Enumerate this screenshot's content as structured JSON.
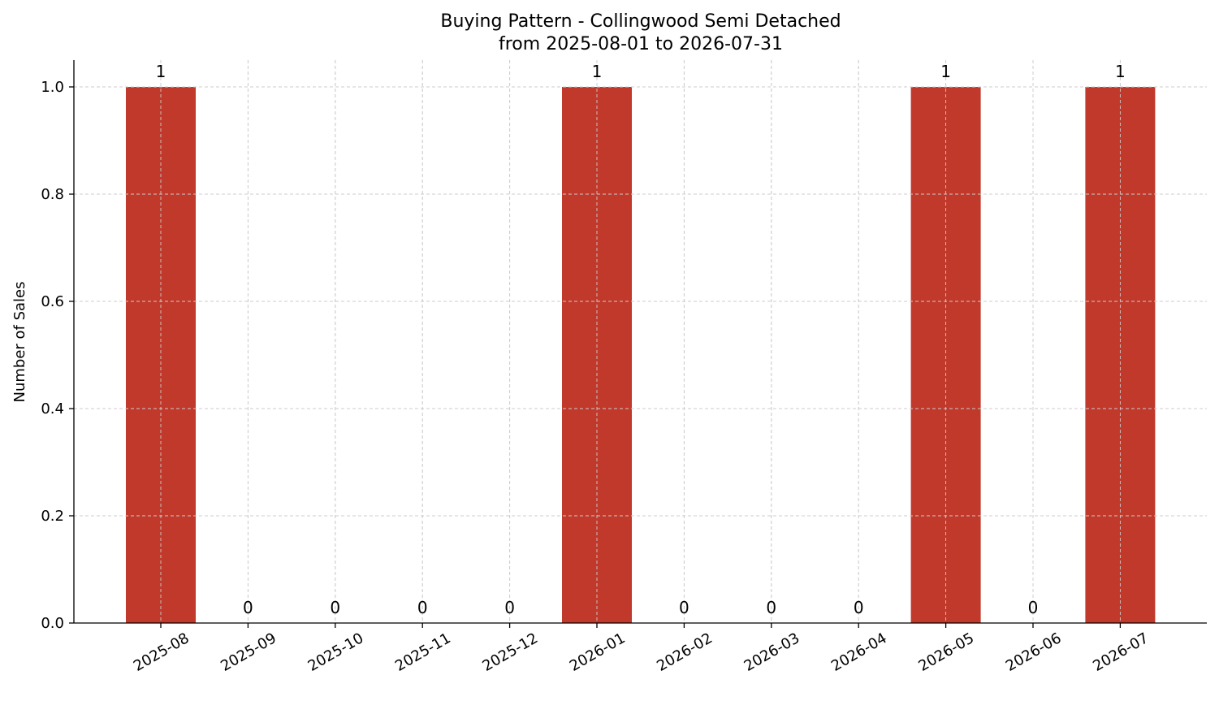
{
  "chart_data": {
    "type": "bar",
    "title": "Buying Pattern - Collingwood Semi Detached",
    "subtitle": "from 2025-08-01 to 2026-07-31",
    "xlabel": "",
    "ylabel": "Number of Sales",
    "categories": [
      "2025-08",
      "2025-09",
      "2025-10",
      "2025-11",
      "2025-12",
      "2026-01",
      "2026-02",
      "2026-03",
      "2026-04",
      "2026-05",
      "2026-06",
      "2026-07"
    ],
    "values": [
      1,
      0,
      0,
      0,
      0,
      1,
      0,
      0,
      0,
      1,
      0,
      1
    ],
    "data_labels": [
      "1",
      "0",
      "0",
      "0",
      "0",
      "1",
      "0",
      "0",
      "0",
      "1",
      "0",
      "1"
    ],
    "ylim": [
      0,
      1.05
    ],
    "yticks": [
      0.0,
      0.2,
      0.4,
      0.6,
      0.8,
      1.0
    ],
    "ytick_labels": [
      "0.0",
      "0.2",
      "0.4",
      "0.6",
      "0.8",
      "1.0"
    ],
    "grid": true,
    "bar_color": "#c0392b",
    "legend": "none"
  }
}
